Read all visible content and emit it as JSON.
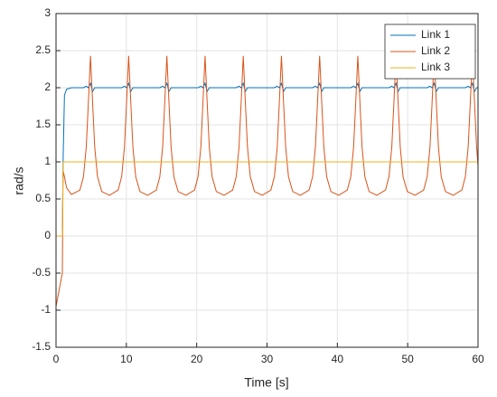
{
  "chart_data": {
    "type": "line",
    "xlabel": "Time [s]",
    "ylabel": "rad/s",
    "xlim": [
      0,
      60
    ],
    "ylim": [
      -1.5,
      3
    ],
    "xticks": [
      0,
      10,
      20,
      30,
      40,
      50,
      60
    ],
    "yticks": [
      -1.5,
      -1,
      -0.5,
      0,
      0.5,
      1,
      1.5,
      2,
      2.5,
      3
    ],
    "grid": true,
    "legend": "top-right",
    "x": [
      0,
      0.5,
      0.9,
      1.0,
      1.2,
      1.5,
      2.2,
      3.4,
      3.9,
      4.3,
      4.6,
      4.9,
      5.2,
      5.5,
      5.9,
      6.5,
      7.6,
      8.83,
      9.33,
      9.73,
      10.03,
      10.33,
      10.63,
      10.93,
      11.33,
      11.93,
      13.03,
      14.26,
      14.76,
      15.16,
      15.46,
      15.76,
      16.06,
      16.36,
      16.76,
      17.36,
      18.46,
      19.69,
      20.19,
      20.59,
      20.89,
      21.19,
      21.49,
      21.79,
      22.19,
      22.79,
      23.89,
      25.12,
      25.62,
      26.02,
      26.32,
      26.62,
      26.92,
      27.22,
      27.62,
      28.22,
      29.32,
      30.55,
      31.05,
      31.45,
      31.75,
      32.05,
      32.35,
      32.65,
      33.05,
      33.65,
      34.75,
      35.98,
      36.48,
      36.88,
      37.18,
      37.48,
      37.78,
      38.08,
      38.48,
      39.08,
      40.18,
      41.41,
      41.91,
      42.31,
      42.61,
      42.91,
      43.21,
      43.51,
      43.91,
      44.51,
      45.61,
      46.84,
      47.34,
      47.74,
      48.04,
      48.34,
      48.64,
      48.94,
      49.34,
      49.94,
      51.04,
      52.27,
      52.77,
      53.17,
      53.47,
      53.77,
      54.07,
      54.37,
      54.77,
      55.37,
      56.47,
      57.7,
      58.2,
      58.6,
      58.9,
      59.2,
      59.5,
      59.8,
      60
    ],
    "series": [
      {
        "name": "Link 1",
        "color": "#0072bd",
        "values": [
          0,
          0,
          0,
          1.0,
          1.9,
          1.98,
          2.0,
          2.0,
          2.0,
          2.02,
          2.0,
          2.06,
          1.95,
          2.0,
          2.0,
          2.0,
          2.0,
          2.0,
          2.0,
          2.02,
          2.0,
          2.06,
          1.95,
          2.0,
          2.0,
          2.0,
          2.0,
          2.0,
          2.0,
          2.02,
          2.0,
          2.06,
          1.95,
          2.0,
          2.0,
          2.0,
          2.0,
          2.0,
          2.0,
          2.02,
          2.0,
          2.06,
          1.95,
          2.0,
          2.0,
          2.0,
          2.0,
          2.0,
          2.0,
          2.02,
          2.0,
          2.06,
          1.95,
          2.0,
          2.0,
          2.0,
          2.0,
          2.0,
          2.0,
          2.02,
          2.0,
          2.06,
          1.95,
          2.0,
          2.0,
          2.0,
          2.0,
          2.0,
          2.0,
          2.02,
          2.0,
          2.06,
          1.95,
          2.0,
          2.0,
          2.0,
          2.0,
          2.0,
          2.0,
          2.02,
          2.0,
          2.06,
          1.95,
          2.0,
          2.0,
          2.0,
          2.0,
          2.0,
          2.0,
          2.02,
          2.0,
          2.06,
          1.95,
          2.0,
          2.0,
          2.0,
          2.0,
          2.0,
          2.0,
          2.02,
          2.0,
          2.06,
          1.95,
          2.0,
          2.0,
          2.0,
          2.0,
          2.0,
          2.0,
          2.02,
          2.0,
          2.06,
          1.95,
          2.0,
          2.0
        ]
      },
      {
        "name": "Link 2",
        "color": "#d95319",
        "values": [
          -0.95,
          -0.7,
          -0.5,
          0.88,
          0.8,
          0.65,
          0.56,
          0.62,
          0.8,
          1.2,
          1.8,
          2.43,
          1.8,
          1.2,
          0.8,
          0.6,
          0.55,
          0.62,
          0.8,
          1.2,
          1.8,
          2.43,
          1.8,
          1.2,
          0.8,
          0.6,
          0.55,
          0.62,
          0.8,
          1.2,
          1.8,
          2.43,
          1.8,
          1.2,
          0.8,
          0.6,
          0.55,
          0.62,
          0.8,
          1.2,
          1.8,
          2.43,
          1.8,
          1.2,
          0.8,
          0.6,
          0.55,
          0.62,
          0.8,
          1.2,
          1.8,
          2.43,
          1.8,
          1.2,
          0.8,
          0.6,
          0.55,
          0.62,
          0.8,
          1.2,
          1.8,
          2.43,
          1.8,
          1.2,
          0.8,
          0.6,
          0.55,
          0.62,
          0.8,
          1.2,
          1.8,
          2.43,
          1.8,
          1.2,
          0.8,
          0.6,
          0.55,
          0.62,
          0.8,
          1.2,
          1.8,
          2.43,
          1.8,
          1.2,
          0.8,
          0.6,
          0.55,
          0.62,
          0.8,
          1.2,
          1.8,
          2.43,
          1.8,
          1.2,
          0.8,
          0.6,
          0.55,
          0.62,
          0.8,
          1.2,
          1.8,
          2.43,
          1.8,
          1.2,
          0.8,
          0.6,
          0.55,
          0.62,
          0.8,
          1.2,
          1.8,
          2.43,
          1.8,
          1.2,
          0.95
        ]
      },
      {
        "name": "Link 3",
        "color": "#edb120",
        "values": [
          0,
          0,
          0,
          1,
          1,
          1,
          1,
          1,
          1,
          1,
          1,
          1,
          1,
          1,
          1,
          1,
          1,
          1,
          1,
          1,
          1,
          1,
          1,
          1,
          1,
          1,
          1,
          1,
          1,
          1,
          1,
          1,
          1,
          1,
          1,
          1,
          1,
          1,
          1,
          1,
          1,
          1,
          1,
          1,
          1,
          1,
          1,
          1,
          1,
          1,
          1,
          1,
          1,
          1,
          1,
          1,
          1,
          1,
          1,
          1,
          1,
          1,
          1,
          1,
          1,
          1,
          1,
          1,
          1,
          1,
          1,
          1,
          1,
          1,
          1,
          1,
          1,
          1,
          1,
          1,
          1,
          1,
          1,
          1,
          1,
          1,
          1,
          1,
          1,
          1,
          1,
          1,
          1,
          1,
          1,
          1,
          1,
          1,
          1,
          1,
          1,
          1,
          1,
          1,
          1,
          1,
          1,
          1,
          1,
          1,
          1,
          1,
          1,
          1,
          1
        ]
      }
    ]
  }
}
